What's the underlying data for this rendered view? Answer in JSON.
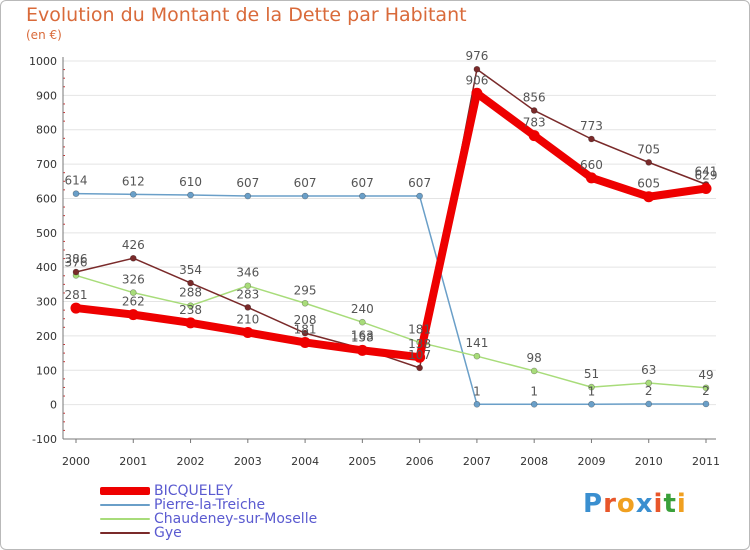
{
  "header": {
    "title": "Evolution du Montant de la Dette par Habitant",
    "unit": "(en €)"
  },
  "logo": {
    "text": "Proxiti",
    "colors": [
      "#3a8fd0",
      "#e8562a",
      "#f0a020",
      "#3a8fd0",
      "#e8562a",
      "#3aa03a",
      "#f0a020"
    ]
  },
  "chart_data": {
    "type": "line",
    "title": "Evolution du Montant de la Dette par Habitant",
    "ylabel": "(en €)",
    "xlabel": "",
    "x": [
      "2000",
      "2001",
      "2002",
      "2003",
      "2004",
      "2005",
      "2006",
      "2007",
      "2008",
      "2009",
      "2010",
      "2011"
    ],
    "yticks": [
      "-100",
      "0",
      "100",
      "200",
      "300",
      "400",
      "500",
      "600",
      "700",
      "800",
      "900",
      "1000"
    ],
    "ylim": [
      -100,
      1000
    ],
    "grid": "horizontal",
    "legend": "bottom-left",
    "series": [
      {
        "name": "BICQUELEY",
        "color": "#ee0000",
        "values": [
          281,
          262,
          238,
          210,
          181,
          158,
          138,
          906,
          783,
          660,
          605,
          629
        ],
        "labels": [
          "281",
          "262",
          "238",
          "210",
          "181",
          "158",
          "138",
          "906",
          "783",
          "660",
          "605",
          "629"
        ]
      },
      {
        "name": "Pierre-la-Treiche",
        "color": "#6a9fc8",
        "values": [
          614,
          612,
          610,
          607,
          607,
          607,
          607,
          1,
          1,
          1,
          2,
          2
        ],
        "labels": [
          "614",
          "612",
          "610",
          "607",
          "607",
          "607",
          "607",
          "1",
          "1",
          "1",
          "2",
          "2"
        ]
      },
      {
        "name": "Chaudeney-sur-Moselle",
        "color": "#a8dc7a",
        "values": [
          376,
          326,
          288,
          346,
          295,
          240,
          181,
          141,
          98,
          51,
          63,
          49
        ],
        "labels": [
          "376",
          "326",
          "288",
          "346",
          "295",
          "240",
          "181",
          "141",
          "98",
          "51",
          "63",
          "49"
        ]
      },
      {
        "name": "Gye",
        "color": "#7a2a2a",
        "values": [
          386,
          426,
          354,
          283,
          208,
          163,
          107,
          976,
          856,
          773,
          705,
          641
        ],
        "labels": [
          "386",
          "426",
          "354",
          "283",
          "208",
          "163",
          "107",
          "976",
          "856",
          "773",
          "705",
          "641"
        ]
      }
    ]
  }
}
